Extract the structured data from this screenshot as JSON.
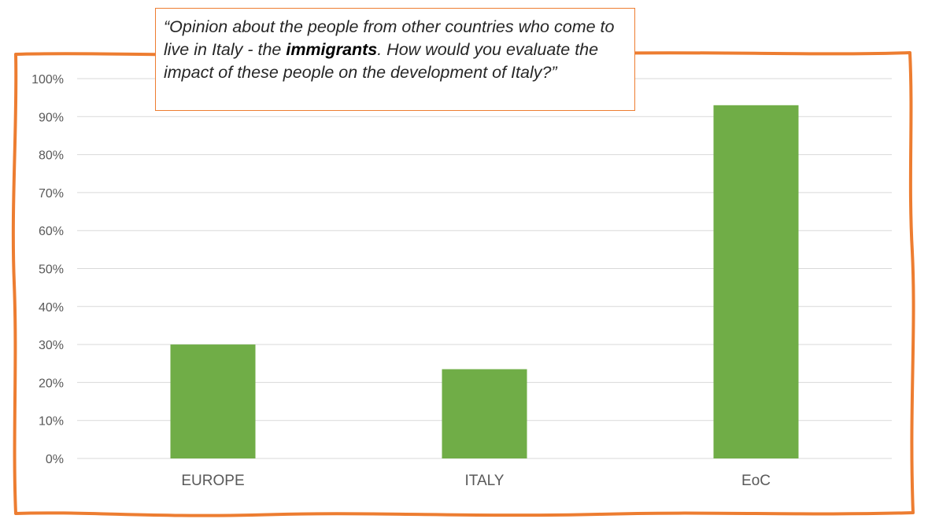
{
  "callout": {
    "text_before": "“Opinion about the people from other countries who come to live in Italy - the ",
    "emphasis": "immigrants",
    "text_after": ". How would you evaluate the impact of these people on the development of Italy?”"
  },
  "colors": {
    "bar": "#70AD47",
    "frame": "#ED7D31",
    "grid": "#D9D9D9",
    "axis_text": "#595959"
  },
  "chart_data": {
    "type": "bar",
    "categories": [
      "EUROPE",
      "ITALY",
      "EoC"
    ],
    "values": [
      30,
      23.5,
      93
    ],
    "ylim": [
      0,
      100
    ],
    "ytick_step": 10,
    "ytick_format": "percent",
    "grid": true,
    "legend": "none",
    "title": "",
    "xlabel": "",
    "ylabel": ""
  }
}
